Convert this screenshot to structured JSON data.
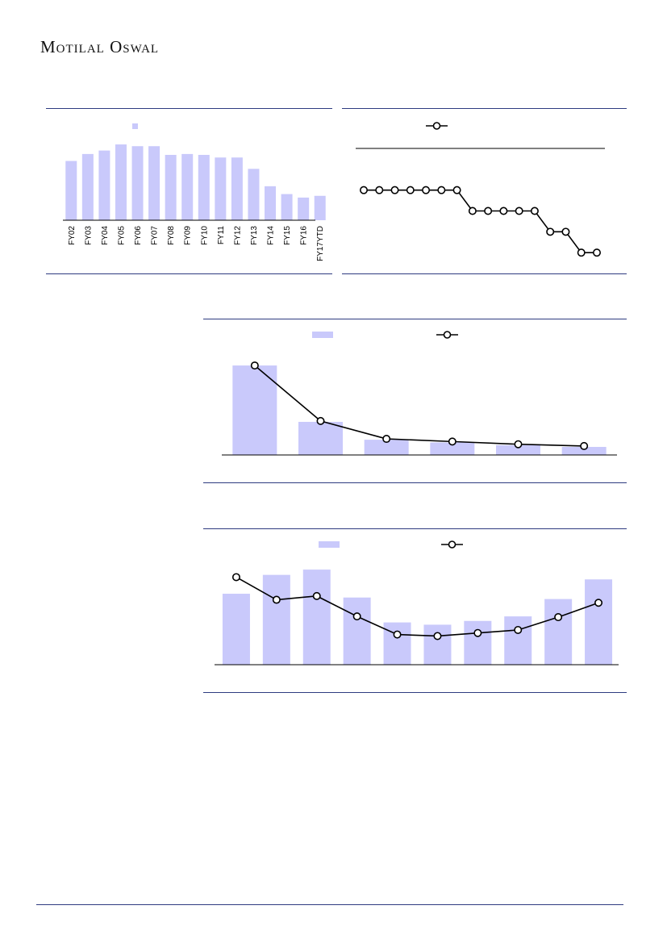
{
  "brand": {
    "name": "Motilal Oswal"
  },
  "colors": {
    "bar": "#c9c9fb",
    "line": "#000000",
    "rule": "#2e3b80",
    "axis": "#000000"
  },
  "chart_data": [
    {
      "type": "bar",
      "categories": [
        "FY02",
        "FY03",
        "FY04",
        "FY05",
        "FY06",
        "FY07",
        "FY08",
        "FY09",
        "FY10",
        "FY11",
        "FY12",
        "FY13",
        "FY14",
        "FY15",
        "FY16",
        "FY17YTD"
      ],
      "values": [
        68,
        76,
        80,
        87,
        85,
        85,
        75,
        76,
        75,
        72,
        72,
        59,
        39,
        30,
        26,
        28
      ],
      "ylim": [
        0,
        100
      ],
      "legend": "top"
    },
    {
      "type": "line",
      "x": [
        1,
        2,
        3,
        4,
        5,
        6,
        7,
        8,
        9,
        10,
        11,
        12,
        13,
        14,
        15,
        16
      ],
      "values": [
        8.0,
        8.0,
        8.0,
        8.0,
        8.0,
        8.0,
        8.0,
        7.0,
        7.0,
        7.0,
        7.0,
        7.0,
        6.0,
        6.0,
        5.0,
        5.0
      ],
      "ylim": [
        4,
        10
      ],
      "legend": "top"
    },
    {
      "type": "bar",
      "bars": [
        100,
        37,
        17,
        14,
        11,
        9
      ],
      "line": [
        100,
        38,
        18,
        15,
        12,
        10
      ],
      "ylim": [
        0,
        110
      ],
      "legend": "top"
    },
    {
      "type": "bar",
      "bars": [
        94,
        119,
        126,
        89,
        56,
        53,
        58,
        64,
        87,
        113
      ],
      "line": [
        116,
        86,
        91,
        64,
        40,
        38,
        42,
        46,
        63,
        82
      ],
      "ylim": [
        0,
        140
      ],
      "legend": "top"
    }
  ]
}
